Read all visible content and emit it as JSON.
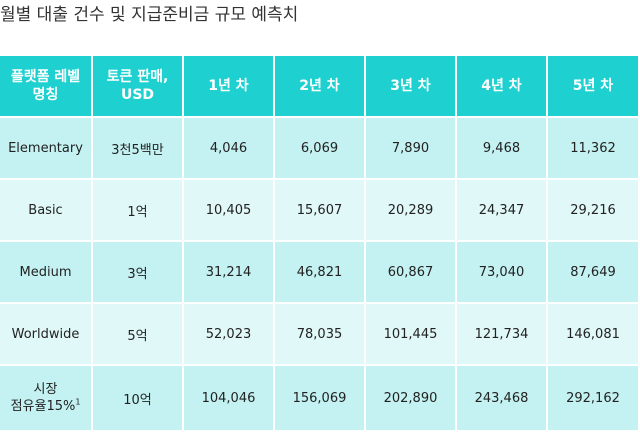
{
  "title": "월별 대출 건수 및 지급준비금 규모 예측치",
  "table": {
    "headers": [
      [
        "플랫폼 레벨",
        "명칭"
      ],
      [
        "토큰 판매,",
        "USD"
      ],
      [
        "1년 차"
      ],
      [
        "2년 차"
      ],
      [
        "3년 차"
      ],
      [
        "4년 차"
      ],
      [
        "5년 차"
      ]
    ],
    "rows": [
      {
        "level": [
          "Elementary"
        ],
        "sup": "",
        "tokens": "3천5백만",
        "values": [
          "4,046",
          "6,069",
          "7,890",
          "9,468",
          "11,362"
        ]
      },
      {
        "level": [
          "Basic"
        ],
        "sup": "",
        "tokens": "1억",
        "values": [
          "10,405",
          "15,607",
          "20,289",
          "24,347",
          "29,216"
        ]
      },
      {
        "level": [
          "Medium"
        ],
        "sup": "",
        "tokens": "3억",
        "values": [
          "31,214",
          "46,821",
          "60,867",
          "73,040",
          "87,649"
        ]
      },
      {
        "level": [
          "Worldwide"
        ],
        "sup": "",
        "tokens": "5억",
        "values": [
          "52,023",
          "78,035",
          "101,445",
          "121,734",
          "146,081"
        ]
      },
      {
        "level": [
          "시장",
          "점유율15%"
        ],
        "sup": "1",
        "tokens": "10억",
        "values": [
          "104,046",
          "156,069",
          "202,890",
          "243,468",
          "292,162"
        ]
      }
    ]
  }
}
